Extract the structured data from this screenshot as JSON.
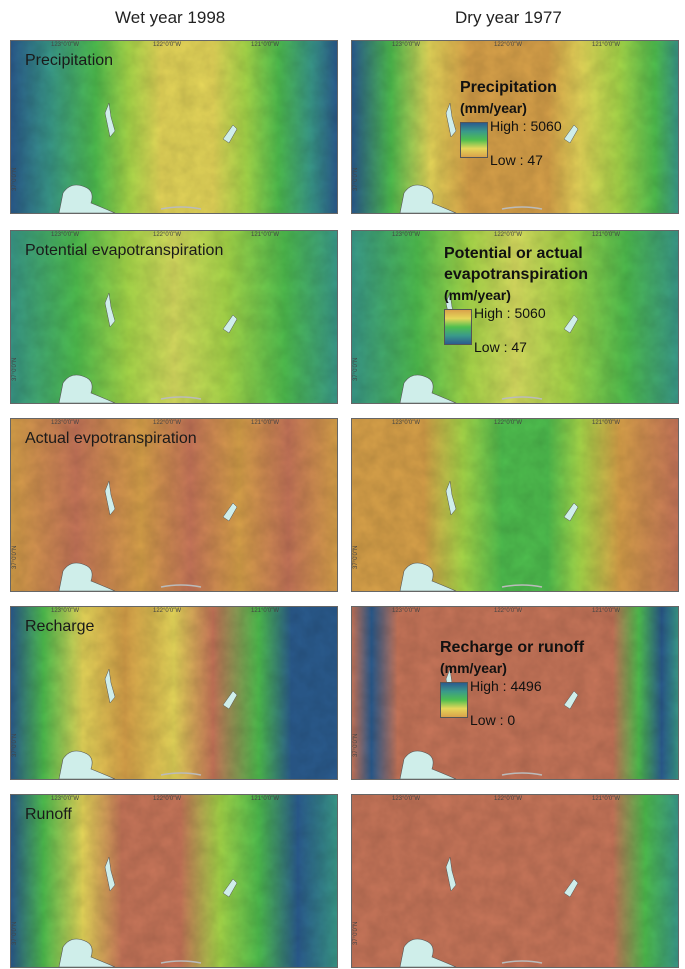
{
  "columns": {
    "wet": "Wet year 1998",
    "dry": "Dry year 1977"
  },
  "ticks": {
    "lon": [
      "123°0'0\"W",
      "122°0'0\"W",
      "121°0'0\"W"
    ],
    "lat": "37°0'0\"N"
  },
  "rows": [
    {
      "label": "Precipitation",
      "wet_palette": "precip_wet",
      "dry_palette": "precip_dry",
      "legend": {
        "title": "Precipitation",
        "unit": "(mm/year)",
        "high": "High : 5060",
        "low": "Low : 47",
        "ramp": "blue-to-orange"
      }
    },
    {
      "label": "Potential evapotranspiration",
      "wet_palette": "pet_wet",
      "dry_palette": "pet_dry",
      "legend": {
        "title": "Potential or actual evapotranspiration",
        "unit": "(mm/year)",
        "high": "High : 5060",
        "low": "Low : 47",
        "ramp": "orange-to-blue"
      }
    },
    {
      "label": "Actual evpotranspiration",
      "wet_palette": "aet_wet",
      "dry_palette": "aet_dry",
      "legend": null
    },
    {
      "label": "Recharge",
      "wet_palette": "rech_wet",
      "dry_palette": "rech_dry",
      "legend": {
        "title": "Recharge or runoff",
        "unit": "(mm/year)",
        "high": "High : 4496",
        "low": "Low : 0",
        "ramp": "blue-to-orange"
      }
    },
    {
      "label": "Runoff",
      "wet_palette": "run_wet",
      "dry_palette": "run_dry",
      "legend": null
    }
  ],
  "colors": {
    "blue": "#2b5c8f",
    "teal": "#3a9a8a",
    "green": "#4fbf4f",
    "lime": "#a8d94a",
    "yellow": "#e6d75a",
    "orange": "#d9a24a",
    "terracotta": "#c8765a",
    "water": "#cfeeea"
  }
}
